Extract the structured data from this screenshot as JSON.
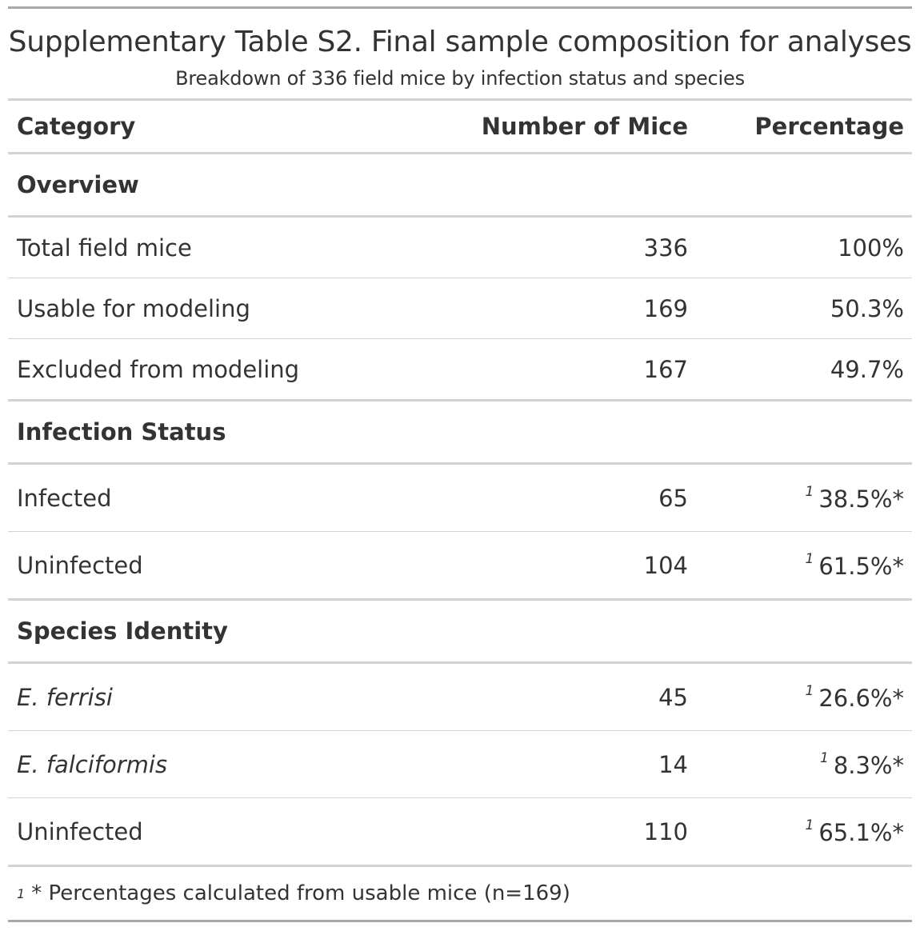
{
  "title": "Supplementary Table S2. Final sample composition for analyses",
  "subtitle": "Breakdown of 336 field mice by infection status and species",
  "columns": [
    "Category",
    "Number of Mice",
    "Percentage"
  ],
  "groups": [
    {
      "label": "Overview",
      "rows": [
        {
          "category": "Total field mice",
          "count": "336",
          "percentage": "100%",
          "footnote": "",
          "italic": false
        },
        {
          "category": "Usable for modeling",
          "count": "169",
          "percentage": "50.3%",
          "footnote": "",
          "italic": false
        },
        {
          "category": "Excluded from modeling",
          "count": "167",
          "percentage": "49.7%",
          "footnote": "",
          "italic": false
        }
      ]
    },
    {
      "label": "Infection Status",
      "rows": [
        {
          "category": "Infected",
          "count": "65",
          "percentage": "38.5%*",
          "footnote": "1",
          "italic": false
        },
        {
          "category": "Uninfected",
          "count": "104",
          "percentage": "61.5%*",
          "footnote": "1",
          "italic": false
        }
      ]
    },
    {
      "label": "Species Identity",
      "rows": [
        {
          "category": "E. ferrisi",
          "count": "45",
          "percentage": "26.6%*",
          "footnote": "1",
          "italic": true
        },
        {
          "category": "E. falciformis",
          "count": "14",
          "percentage": "8.3%*",
          "footnote": "1",
          "italic": true
        },
        {
          "category": "Uninfected",
          "count": "110",
          "percentage": "65.1%*",
          "footnote": "1",
          "italic": false
        }
      ]
    }
  ],
  "footnote": {
    "mark": "1",
    "text": "* Percentages calculated from usable mice (n=169)"
  }
}
